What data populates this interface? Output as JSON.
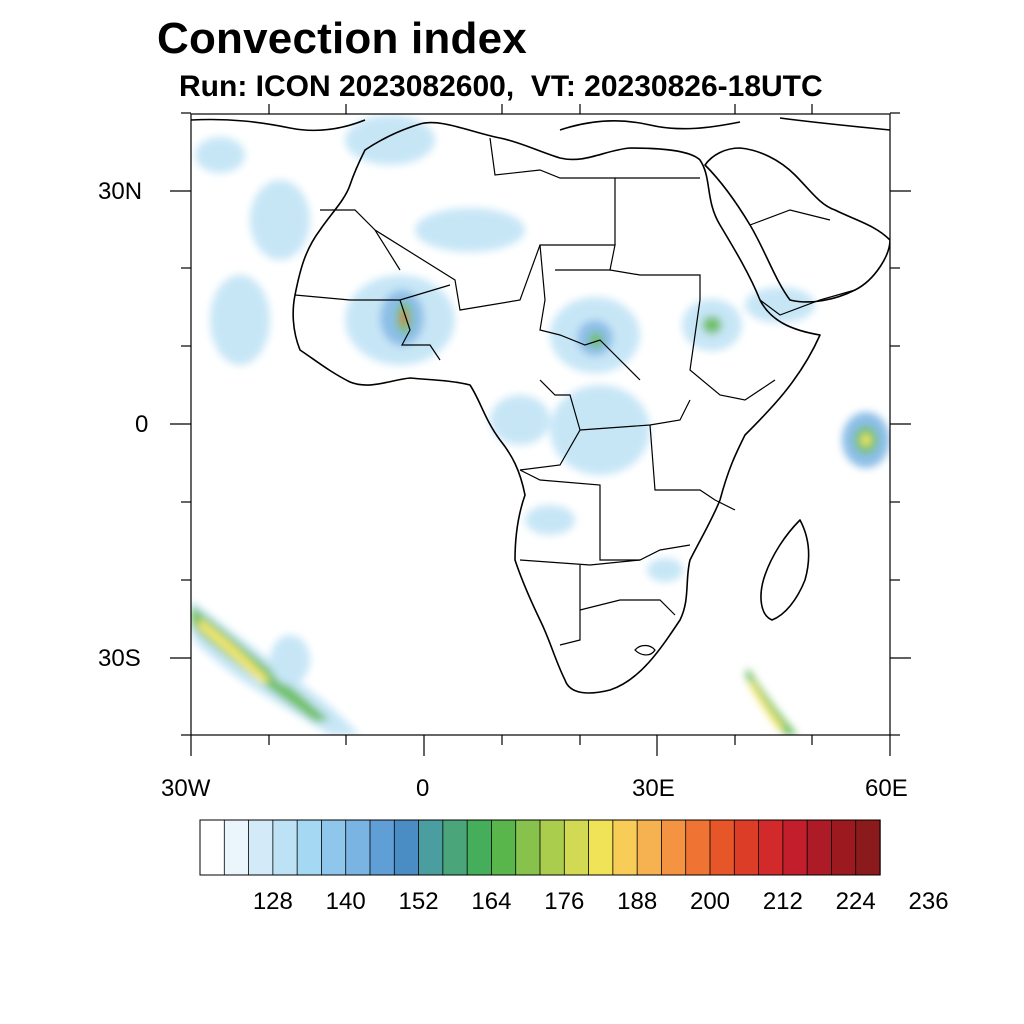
{
  "title": "Convection index",
  "subtitle": "Run: ICON 2023082600,  VT: 20230826-18UTC",
  "axes": {
    "lat_labels": [
      "30N",
      "0",
      "30S"
    ],
    "lon_labels": [
      "30W",
      "0",
      "30E",
      "60E"
    ],
    "lon_range": [
      -30,
      60
    ],
    "lat_range": [
      -40,
      40
    ]
  },
  "colorbar": {
    "labels": [
      "128",
      "140",
      "152",
      "164",
      "176",
      "188",
      "200",
      "212",
      "224",
      "236"
    ],
    "colors": [
      "#ffffff",
      "#eaf6fc",
      "#d3ebf8",
      "#bde2f5",
      "#a4d8f3",
      "#8fc7ec",
      "#79b4e3",
      "#5f9fd6",
      "#4a8dc4",
      "#4a9ea0",
      "#4aa67a",
      "#45ae5a",
      "#59b64a",
      "#86c24c",
      "#aacd4e",
      "#d1da52",
      "#f0e358",
      "#f7cc57",
      "#f6b150",
      "#f49443",
      "#ef7434",
      "#e65629",
      "#dc3d27",
      "#d22a2a",
      "#c21e2b",
      "#ad1b26",
      "#9c1a1f",
      "#8b1a1c"
    ]
  },
  "fields": {
    "shade_light": "#bde2f5",
    "shade_mid": "#79b4e3",
    "shade_green": "#59b64a",
    "shade_yellow": "#f0e358",
    "shade_red": "#dc3d27"
  }
}
